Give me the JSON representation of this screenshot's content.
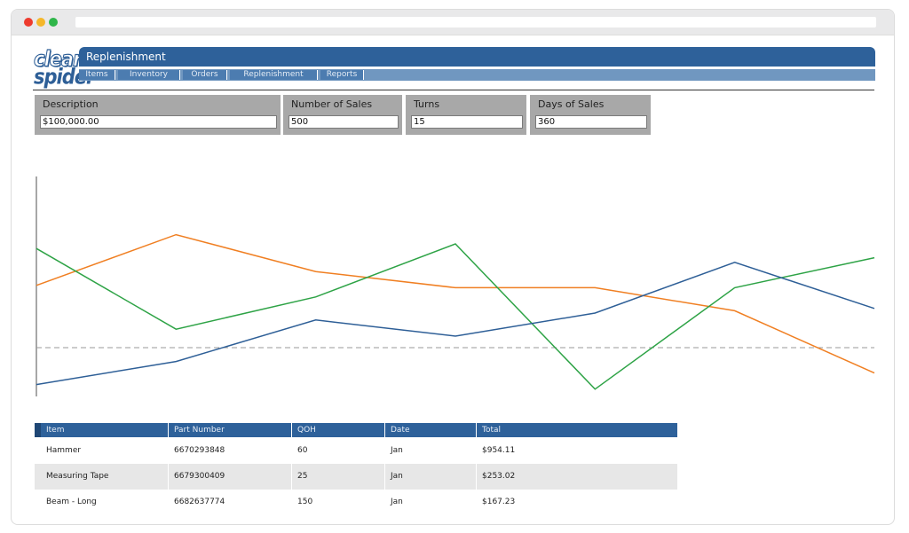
{
  "logo": {
    "line1": "clear",
    "line2": "spider"
  },
  "header": {
    "title": "Replenishment"
  },
  "nav": {
    "tabs": [
      "Items",
      "Inventory",
      "Orders",
      "Replenishment",
      "Reports"
    ]
  },
  "filters": [
    {
      "label": "Description",
      "value": "$100,000.00"
    },
    {
      "label": "Number of Sales",
      "value": "500"
    },
    {
      "label": "Turns",
      "value": "15"
    },
    {
      "label": "Days of Sales",
      "value": "360"
    }
  ],
  "chart_data": {
    "type": "line",
    "x": [
      1,
      2,
      3,
      4,
      5,
      6,
      7
    ],
    "ylim": [
      0,
      100
    ],
    "reference_line": 25,
    "grid": false,
    "series": [
      {
        "color": "#f07f22",
        "values": [
          52,
          74,
          58,
          51,
          51,
          41,
          14
        ]
      },
      {
        "color": "#2ea346",
        "values": [
          68,
          33,
          47,
          70,
          7,
          51,
          64
        ]
      },
      {
        "color": "#2e5f97",
        "values": [
          9,
          19,
          37,
          30,
          40,
          62,
          42
        ]
      }
    ]
  },
  "table": {
    "columns": [
      "Item",
      "Part Number",
      "QOH",
      "Date",
      "Total"
    ],
    "rows": [
      [
        "Hammer",
        "6670293848",
        "60",
        "Jan",
        "$954.11"
      ],
      [
        "Measuring Tape",
        "6679300409",
        "25",
        "Jan",
        "$253.02"
      ],
      [
        "Beam - Long",
        "6682637774",
        "150",
        "Jan",
        "$167.23"
      ]
    ]
  }
}
